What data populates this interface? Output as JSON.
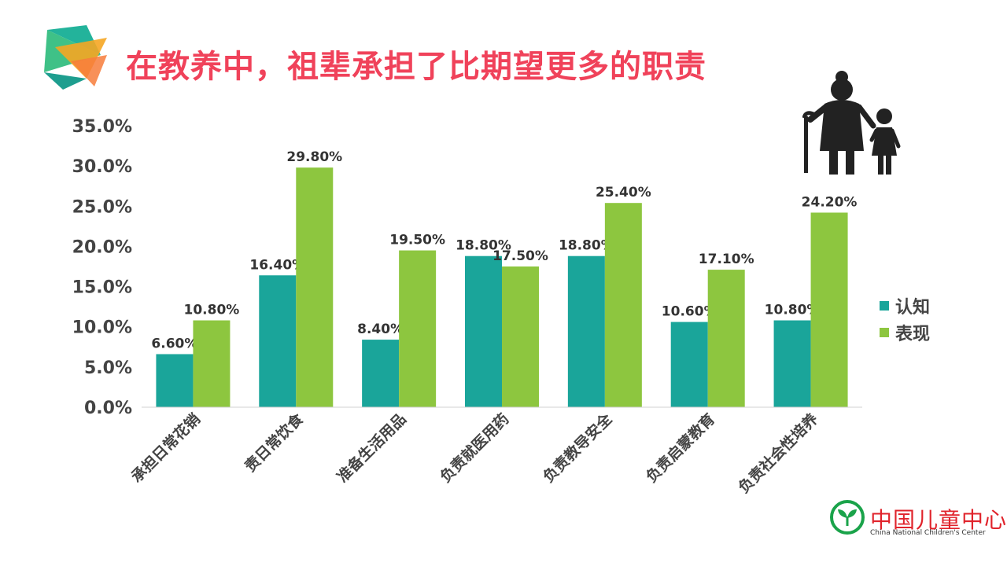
{
  "title": "在教养中，祖辈承担了比期望更多的职责",
  "colors": {
    "title": "#f0425a",
    "series1": "#1aa59a",
    "series2": "#8dc63f"
  },
  "chart_data": {
    "type": "bar",
    "categories": [
      "承担日常花销",
      "责日常饮食",
      "准备生活用品",
      "负责就医用药",
      "负责教导安全",
      "负责启蒙教育",
      "负责社会性培养"
    ],
    "series": [
      {
        "name": "认知",
        "values": [
          6.6,
          16.4,
          8.4,
          18.8,
          18.8,
          10.6,
          10.8
        ],
        "labels": [
          "6.60%",
          "16.40%",
          "8.40%",
          "18.80%",
          "18.80%",
          "10.60%",
          "10.80%"
        ]
      },
      {
        "name": "表现",
        "values": [
          10.8,
          29.8,
          19.5,
          17.5,
          25.4,
          17.1,
          24.2
        ],
        "labels": [
          "10.80%",
          "29.80%",
          "19.50%",
          "17.50%",
          "25.40%",
          "17.10%",
          "24.20%"
        ]
      }
    ],
    "ylim": [
      0,
      35
    ],
    "yticks": [
      "0.0%",
      "5.0%",
      "10.0%",
      "15.0%",
      "20.0%",
      "25.0%",
      "30.0%",
      "35.0%"
    ],
    "legend_position": "right",
    "grid": false
  },
  "logo": {
    "name_cn": "中国儿童中心",
    "name_en": "China National Children's Center"
  }
}
